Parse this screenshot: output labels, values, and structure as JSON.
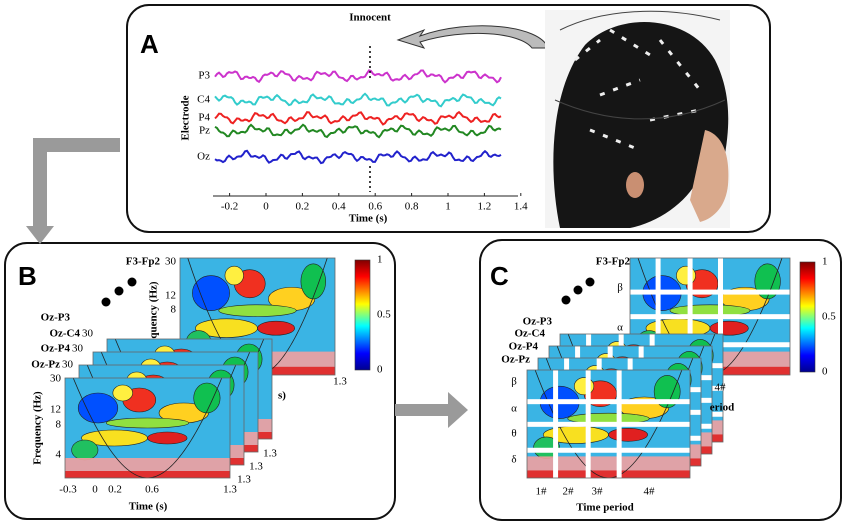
{
  "panel_a": {
    "label": "A",
    "annotation": "Innocent",
    "y_axis_title": "Electrode",
    "channels": [
      "P3",
      "C4",
      "P4",
      "Pz",
      "Oz"
    ],
    "x_ticks": [
      "-0.2",
      "0",
      "0.2",
      "0.4",
      "0.6",
      "0.8",
      "1",
      "1.2",
      "1.4"
    ],
    "x_axis_title": "Time (s)"
  },
  "panel_b": {
    "label": "B",
    "back_channel": "F3-Fp2",
    "back_y_ticks": [
      "30",
      "12",
      "8"
    ],
    "back_y_axis_title": "quency (Hz)",
    "channels": [
      "Oz-P3",
      "Oz-C4",
      "Oz-P4",
      "Oz-Pz"
    ],
    "stack_ticks": [
      "30",
      "30",
      "30"
    ],
    "y_axis_title": "Frequency (Hz)",
    "y_ticks": [
      "30",
      "12",
      "8",
      "4"
    ],
    "x_ticks": [
      "-0.3",
      "0",
      "0.2",
      "0.6",
      "1.3"
    ],
    "x_axis_title": "Time (s)",
    "stack_end_ticks": [
      "1.3",
      "1.3",
      "1.3",
      "1.3"
    ],
    "stack_partial_title": "s)",
    "colorbar_ticks": [
      "1",
      "0.5",
      "0"
    ]
  },
  "panel_c": {
    "label": "C",
    "back_channel": "F3-Fp2",
    "back_bands": [
      "β",
      "α"
    ],
    "channels": [
      "Oz-P3",
      "Oz-C4",
      "Oz-P4",
      "Oz-Pz"
    ],
    "bands": [
      "β",
      "α",
      "θ",
      "δ"
    ],
    "periods": [
      "1#",
      "2#",
      "3#",
      "4#"
    ],
    "x_axis_title": "Time period",
    "stack_period": "4#",
    "stack_partial_title": "eriod",
    "colorbar_ticks": [
      "1",
      "0.5",
      "0"
    ]
  }
}
